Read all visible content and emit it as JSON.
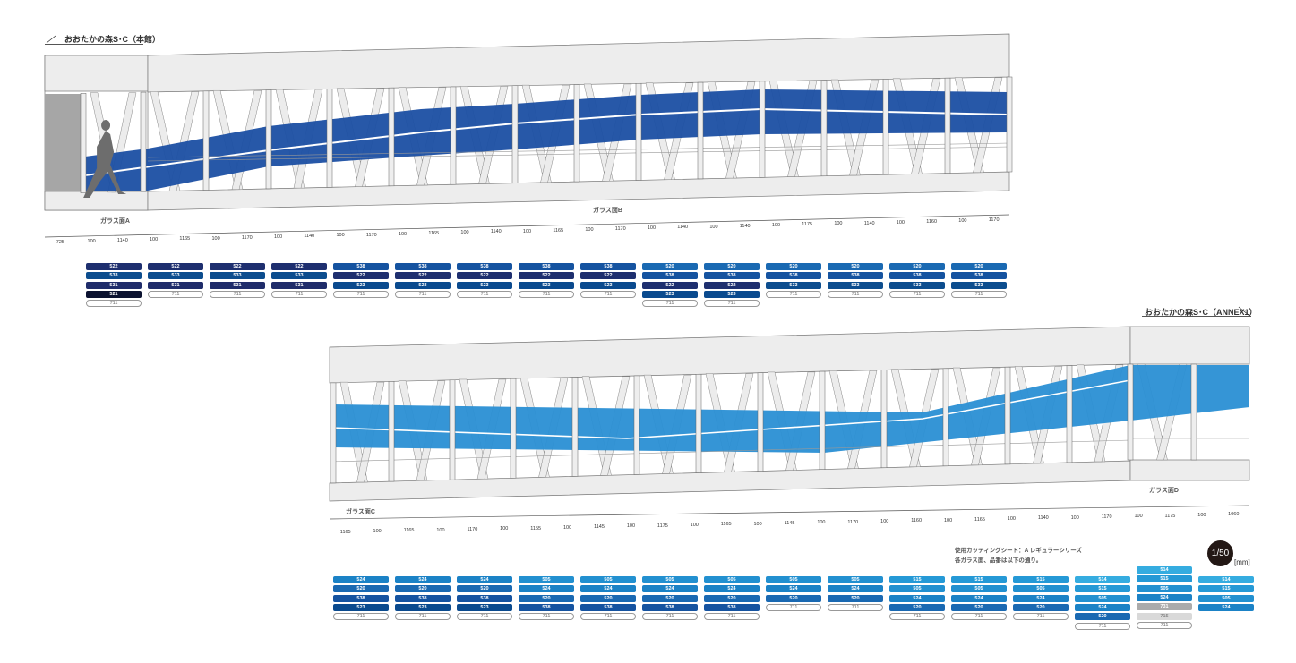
{
  "main_building": {
    "title": "おおたかの森S･C（本館）",
    "glass_a": "ガラス面A",
    "glass_b": "ガラス面B",
    "dimensions": [
      "725",
      "100",
      "1140",
      "100",
      "1165",
      "100",
      "1170",
      "100",
      "1140",
      "100",
      "1170",
      "100",
      "1165",
      "100",
      "1140",
      "100",
      "1165",
      "100",
      "1170",
      "100",
      "1140",
      "100",
      "1140",
      "100",
      "1175",
      "100",
      "1140",
      "100",
      "1160",
      "100",
      "1170"
    ],
    "panels": [
      [
        "522",
        "533",
        "531",
        "521",
        "711"
      ],
      [
        "522",
        "533",
        "531",
        "711"
      ],
      [
        "522",
        "533",
        "531",
        "711"
      ],
      [
        "522",
        "533",
        "531",
        "711"
      ],
      [
        "538",
        "522",
        "523",
        "711"
      ],
      [
        "538",
        "522",
        "523",
        "711"
      ],
      [
        "538",
        "522",
        "523",
        "711"
      ],
      [
        "538",
        "522",
        "523",
        "711"
      ],
      [
        "538",
        "522",
        "523",
        "711"
      ],
      [
        "520",
        "538",
        "522",
        "523",
        "711"
      ],
      [
        "520",
        "538",
        "522",
        "523",
        "711"
      ],
      [
        "520",
        "538",
        "533",
        "711"
      ],
      [
        "520",
        "538",
        "533",
        "711"
      ],
      [
        "520",
        "538",
        "533",
        "711"
      ],
      [
        "520",
        "538",
        "533",
        "711"
      ]
    ]
  },
  "annex": {
    "title": "おおたかの森S･C（ANNEX1）",
    "glass_c": "ガラス面C",
    "glass_d": "ガラス面D",
    "dimensions": [
      "1165",
      "100",
      "1165",
      "100",
      "1170",
      "100",
      "1155",
      "100",
      "1145",
      "100",
      "1175",
      "100",
      "1165",
      "100",
      "1145",
      "100",
      "1170",
      "100",
      "1160",
      "100",
      "1165",
      "100",
      "1140",
      "100",
      "1170",
      "100",
      "1175",
      "100",
      "1060"
    ],
    "panels": [
      [
        "524",
        "520",
        "538",
        "523",
        "711"
      ],
      [
        "524",
        "520",
        "538",
        "523",
        "711"
      ],
      [
        "524",
        "520",
        "538",
        "523",
        "711"
      ],
      [
        "505",
        "524",
        "520",
        "538",
        "711"
      ],
      [
        "505",
        "524",
        "520",
        "538",
        "711"
      ],
      [
        "505",
        "524",
        "520",
        "538",
        "711"
      ],
      [
        "505",
        "524",
        "520",
        "538",
        "711"
      ],
      [
        "505",
        "524",
        "520",
        "711"
      ],
      [
        "505",
        "524",
        "520",
        "711"
      ],
      [
        "515",
        "505",
        "524",
        "520",
        "711"
      ],
      [
        "515",
        "505",
        "524",
        "520",
        "711"
      ],
      [
        "515",
        "505",
        "524",
        "520",
        "711"
      ],
      [
        "514",
        "515",
        "505",
        "524",
        "520",
        "711"
      ],
      [
        "514",
        "515",
        "505",
        "524",
        "731",
        "715",
        "711"
      ],
      [
        "514",
        "515",
        "505",
        "524"
      ]
    ]
  },
  "notes": {
    "line1": "使用カッティングシート：A レギュラーシリーズ",
    "line2": "各ガラス面、品番は以下の通り。",
    "scale": "1/50",
    "unit": "[mm]"
  },
  "colors": {
    "522": "#1e2f6f",
    "533": "#0c4d8e",
    "531": "#1f2c6a",
    "521": "#0b1230",
    "538": "#1553a0",
    "523": "#0a4a8e",
    "520": "#1a69b2",
    "524": "#1b82c6",
    "505": "#2290d0",
    "515": "#2599d6",
    "514": "#35ace0",
    "731": "#ababab",
    "715": "#d9d9d9",
    "band_dark": "#1b4fa3",
    "band_light": "#2a8fd4"
  }
}
